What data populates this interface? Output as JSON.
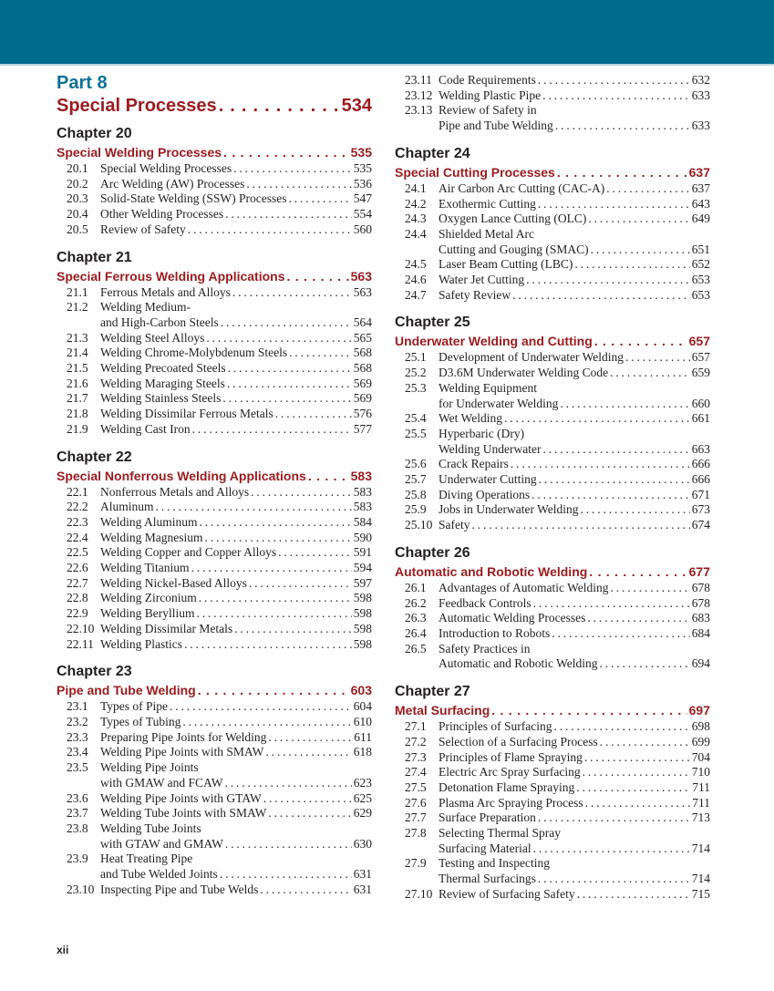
{
  "header_color": "#006b8c",
  "accent_red": "#9b1b1e",
  "accent_blue": "#0d7196",
  "part": {
    "label": "Part 8",
    "title": "Special Processes",
    "page": "534"
  },
  "folio": "xii",
  "columns": [
    [
      {
        "chapter": "Chapter 20",
        "title": "Special Welding Processes",
        "page": "535",
        "entries": [
          {
            "num": "20.1",
            "lines": [
              "Special Welding Processes"
            ],
            "page": "535"
          },
          {
            "num": "20.2",
            "lines": [
              "Arc Welding (AW) Processes"
            ],
            "page": "536"
          },
          {
            "num": "20.3",
            "lines": [
              "Solid-State Welding (SSW) Processes"
            ],
            "page": "547"
          },
          {
            "num": "20.4",
            "lines": [
              "Other Welding Processes"
            ],
            "page": "554"
          },
          {
            "num": "20.5",
            "lines": [
              "Review of Safety"
            ],
            "page": "560"
          }
        ]
      },
      {
        "chapter": "Chapter 21",
        "title": "Special Ferrous Welding Applications",
        "page": "563",
        "entries": [
          {
            "num": "21.1",
            "lines": [
              "Ferrous Metals and Alloys"
            ],
            "page": "563"
          },
          {
            "num": "21.2",
            "lines": [
              "Welding Medium-",
              "and High-Carbon Steels"
            ],
            "page": "564"
          },
          {
            "num": "21.3",
            "lines": [
              "Welding Steel Alloys"
            ],
            "page": "565"
          },
          {
            "num": "21.4",
            "lines": [
              "Welding Chrome-Molybdenum Steels"
            ],
            "page": "568"
          },
          {
            "num": "21.5",
            "lines": [
              "Welding Precoated Steels"
            ],
            "page": "568"
          },
          {
            "num": "21.6",
            "lines": [
              "Welding Maraging Steels"
            ],
            "page": "569"
          },
          {
            "num": "21.7",
            "lines": [
              "Welding Stainless Steels"
            ],
            "page": "569"
          },
          {
            "num": "21.8",
            "lines": [
              "Welding Dissimilar Ferrous Metals"
            ],
            "page": "576"
          },
          {
            "num": "21.9",
            "lines": [
              "Welding Cast Iron"
            ],
            "page": "577"
          }
        ]
      },
      {
        "chapter": "Chapter 22",
        "title": "Special Nonferrous Welding Applications",
        "page": "583",
        "entries": [
          {
            "num": "22.1",
            "lines": [
              "Nonferrous Metals and Alloys"
            ],
            "page": "583"
          },
          {
            "num": "22.2",
            "lines": [
              "Aluminum"
            ],
            "page": "583"
          },
          {
            "num": "22.3",
            "lines": [
              "Welding Aluminum"
            ],
            "page": "584"
          },
          {
            "num": "22.4",
            "lines": [
              "Welding Magnesium"
            ],
            "page": "590"
          },
          {
            "num": "22.5",
            "lines": [
              "Welding Copper and Copper Alloys"
            ],
            "page": "591"
          },
          {
            "num": "22.6",
            "lines": [
              "Welding Titanium"
            ],
            "page": "594"
          },
          {
            "num": "22.7",
            "lines": [
              "Welding Nickel-Based Alloys"
            ],
            "page": "597"
          },
          {
            "num": "22.8",
            "lines": [
              "Welding Zirconium"
            ],
            "page": "598"
          },
          {
            "num": "22.9",
            "lines": [
              "Welding Beryllium"
            ],
            "page": "598"
          },
          {
            "num": "22.10",
            "lines": [
              "Welding Dissimilar Metals"
            ],
            "page": "598"
          },
          {
            "num": "22.11",
            "lines": [
              "Welding Plastics"
            ],
            "page": "598"
          }
        ]
      },
      {
        "chapter": "Chapter 23",
        "title": "Pipe and Tube Welding",
        "page": "603",
        "entries": [
          {
            "num": "23.1",
            "lines": [
              "Types of Pipe"
            ],
            "page": "604"
          },
          {
            "num": "23.2",
            "lines": [
              "Types of Tubing"
            ],
            "page": "610"
          },
          {
            "num": "23.3",
            "lines": [
              "Preparing Pipe Joints for Welding"
            ],
            "page": "611"
          },
          {
            "num": "23.4",
            "lines": [
              "Welding Pipe Joints with SMAW"
            ],
            "page": "618"
          },
          {
            "num": "23.5",
            "lines": [
              "Welding Pipe Joints",
              "with GMAW and FCAW"
            ],
            "page": "623"
          },
          {
            "num": "23.6",
            "lines": [
              "Welding Pipe Joints with GTAW"
            ],
            "page": "625"
          },
          {
            "num": "23.7",
            "lines": [
              "Welding Tube Joints with SMAW"
            ],
            "page": "629"
          },
          {
            "num": "23.8",
            "lines": [
              "Welding Tube Joints",
              "with GTAW and GMAW"
            ],
            "page": "630"
          },
          {
            "num": "23.9",
            "lines": [
              "Heat Treating Pipe",
              "and Tube Welded Joints"
            ],
            "page": "631"
          },
          {
            "num": "23.10",
            "lines": [
              "Inspecting Pipe and Tube Welds"
            ],
            "page": "631"
          }
        ]
      }
    ],
    [
      {
        "entries": [
          {
            "num": "23.11",
            "lines": [
              "Code Requirements"
            ],
            "page": "632"
          },
          {
            "num": "23.12",
            "lines": [
              "Welding Plastic Pipe"
            ],
            "page": "633"
          },
          {
            "num": "23.13",
            "lines": [
              "Review of Safety in",
              "Pipe and Tube Welding"
            ],
            "page": "633"
          }
        ]
      },
      {
        "chapter": "Chapter 24",
        "title": "Special Cutting Processes",
        "page": "637",
        "entries": [
          {
            "num": "24.1",
            "lines": [
              "Air Carbon Arc Cutting (CAC-A)"
            ],
            "page": "637"
          },
          {
            "num": "24.2",
            "lines": [
              "Exothermic Cutting"
            ],
            "page": "643"
          },
          {
            "num": "24.3",
            "lines": [
              "Oxygen Lance Cutting (OLC)"
            ],
            "page": "649"
          },
          {
            "num": "24.4",
            "lines": [
              "Shielded Metal Arc",
              "Cutting and Gouging (SMAC)"
            ],
            "page": "651"
          },
          {
            "num": "24.5",
            "lines": [
              "Laser Beam Cutting (LBC)"
            ],
            "page": "652"
          },
          {
            "num": "24.6",
            "lines": [
              "Water Jet Cutting"
            ],
            "page": "653"
          },
          {
            "num": "24.7",
            "lines": [
              "Safety Review"
            ],
            "page": "653"
          }
        ]
      },
      {
        "chapter": "Chapter 25",
        "title": "Underwater Welding and Cutting",
        "page": "657",
        "entries": [
          {
            "num": "25.1",
            "lines": [
              "Development of Underwater Welding"
            ],
            "page": "657"
          },
          {
            "num": "25.2",
            "lines": [
              "D3.6M Underwater Welding Code"
            ],
            "page": "659"
          },
          {
            "num": "25.3",
            "lines": [
              "Welding Equipment",
              "for Underwater Welding"
            ],
            "page": "660"
          },
          {
            "num": "25.4",
            "lines": [
              "Wet Welding"
            ],
            "page": "661"
          },
          {
            "num": "25.5",
            "lines": [
              "Hyperbaric (Dry)",
              "Welding Underwater"
            ],
            "page": "663"
          },
          {
            "num": "25.6",
            "lines": [
              "Crack Repairs"
            ],
            "page": "666"
          },
          {
            "num": "25.7",
            "lines": [
              "Underwater Cutting"
            ],
            "page": "666"
          },
          {
            "num": "25.8",
            "lines": [
              "Diving Operations"
            ],
            "page": "671"
          },
          {
            "num": "25.9",
            "lines": [
              "Jobs in Underwater Welding"
            ],
            "page": "673"
          },
          {
            "num": "25.10",
            "lines": [
              "Safety"
            ],
            "page": "674"
          }
        ]
      },
      {
        "chapter": "Chapter 26",
        "title": "Automatic and Robotic Welding",
        "page": "677",
        "entries": [
          {
            "num": "26.1",
            "lines": [
              "Advantages of Automatic Welding"
            ],
            "page": "678"
          },
          {
            "num": "26.2",
            "lines": [
              "Feedback Controls"
            ],
            "page": "678"
          },
          {
            "num": "26.3",
            "lines": [
              "Automatic Welding Processes"
            ],
            "page": "683"
          },
          {
            "num": "26.4",
            "lines": [
              "Introduction to Robots"
            ],
            "page": "684"
          },
          {
            "num": "26.5",
            "lines": [
              "Safety Practices in",
              "Automatic and Robotic Welding"
            ],
            "page": "694"
          }
        ]
      },
      {
        "chapter": "Chapter 27",
        "title": "Metal Surfacing",
        "page": "697",
        "entries": [
          {
            "num": "27.1",
            "lines": [
              "Principles of Surfacing"
            ],
            "page": "698"
          },
          {
            "num": "27.2",
            "lines": [
              "Selection of a Surfacing Process"
            ],
            "page": "699"
          },
          {
            "num": "27.3",
            "lines": [
              "Principles of Flame Spraying"
            ],
            "page": "704"
          },
          {
            "num": "27.4",
            "lines": [
              "Electric Arc Spray Surfacing"
            ],
            "page": "710"
          },
          {
            "num": "27.5",
            "lines": [
              "Detonation Flame Spraying"
            ],
            "page": "711"
          },
          {
            "num": "27.6",
            "lines": [
              "Plasma Arc Spraying Process"
            ],
            "page": "711"
          },
          {
            "num": "27.7",
            "lines": [
              "Surface Preparation"
            ],
            "page": "713"
          },
          {
            "num": "27.8",
            "lines": [
              "Selecting Thermal Spray",
              "Surfacing Material"
            ],
            "page": "714"
          },
          {
            "num": "27.9",
            "lines": [
              "Testing and Inspecting",
              "Thermal Surfacings"
            ],
            "page": "714"
          },
          {
            "num": "27.10",
            "lines": [
              "Review of Surfacing Safety"
            ],
            "page": "715"
          }
        ]
      }
    ]
  ]
}
